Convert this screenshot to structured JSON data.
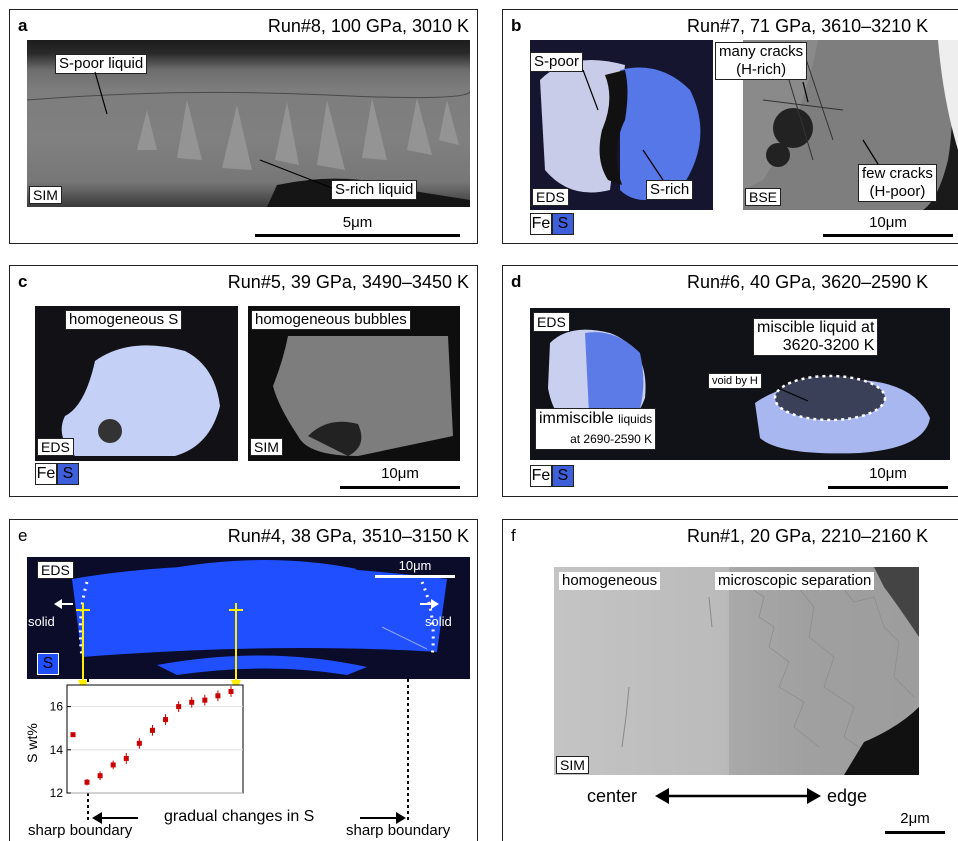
{
  "panels": {
    "a": {
      "letter": "a",
      "title": "Run#8, 100 GPa, 3010 K",
      "label1": "S-poor liquid",
      "label2": "S-rich liquid",
      "mode": "SIM",
      "scale": "5μm"
    },
    "b": {
      "letter": "b",
      "title": "Run#7, 71 GPa, 3610–3210 K",
      "label1": "S-poor",
      "label2": "S-rich",
      "label3": "many cracks\n(H-rich)",
      "label4": "few cracks\n(H-poor)",
      "mode1": "EDS",
      "mode2": "BSE",
      "fe": "Fe",
      "s": "S",
      "scale": "10μm"
    },
    "c": {
      "letter": "c",
      "title": "Run#5, 39 GPa, 3490–3450 K",
      "label1": "homogeneous S",
      "label2": "homogeneous bubbles",
      "mode1": "EDS",
      "mode2": "SIM",
      "fe": "Fe",
      "s": "S",
      "scale": "10μm"
    },
    "d": {
      "letter": "d",
      "title": "Run#6, 40 GPa, 3620–2590 K",
      "mode": "EDS",
      "label1": "miscible liquid at\n3620-3200 K",
      "label2": "void by H",
      "label3a": "immiscible ",
      "label3b": "liquids",
      "label3c": "at 2690-2590 K",
      "fe": "Fe",
      "s": "S",
      "scale": "10μm"
    },
    "e": {
      "letter": "e",
      "title": "Run#4, 38 GPa, 3510–3150 K",
      "mode": "EDS",
      "s": "S",
      "solid_left": "solid",
      "solid_right": "solid",
      "scale": "10μm",
      "caption": "gradual changes in S",
      "boundary_left": "sharp boundary",
      "boundary_right": "sharp boundary"
    },
    "f": {
      "letter": "f",
      "title": "Run#1, 20 GPa, 2210–2160 K",
      "label1": "homogeneous",
      "label2": "microscopic separation",
      "mode": "SIM",
      "center": "center",
      "edge": "edge",
      "scale": "2μm"
    }
  },
  "chart_data": {
    "type": "scatter",
    "title": "",
    "xlabel": "",
    "ylabel": "S wt%",
    "ylim": [
      12,
      17
    ],
    "yticks": [
      12,
      14,
      16
    ],
    "y": [
      14.7,
      12.5,
      12.8,
      13.3,
      13.6,
      14.3,
      14.9,
      15.4,
      16.0,
      16.2,
      16.3,
      16.5,
      16.7
    ],
    "errors": [
      0.05,
      0.15,
      0.2,
      0.2,
      0.25,
      0.25,
      0.25,
      0.25,
      0.25,
      0.25,
      0.25,
      0.25,
      0.25
    ],
    "color": "#cc0000"
  },
  "colors": {
    "eds_blue": "#3d5fd9",
    "bright_blue": "#1f4fff",
    "yellow": "#ffee00"
  }
}
